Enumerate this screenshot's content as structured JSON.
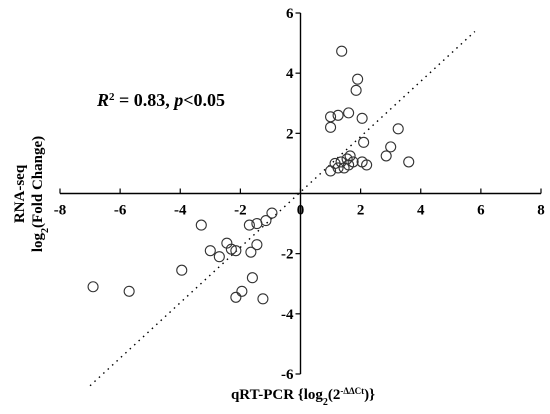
{
  "chart_data": {
    "type": "scatter",
    "xlabel": {
      "pre": "qRT-PCR {log",
      "sub": "2",
      "mid": "(2",
      "sup": "-ΔΔCt",
      "post": ")}"
    },
    "ylabel": {
      "line1": "RNA-seq",
      "pre": "log",
      "sub": "2",
      "post": "(Fold Change)"
    },
    "annotation": {
      "r": "R",
      "r_sup": "2",
      "eq": " = 0.83, ",
      "p": "p",
      "rest": "<0.05"
    },
    "xlim": [
      -8,
      8
    ],
    "ylim": [
      -6,
      6
    ],
    "xticks": [
      -8,
      -6,
      -4,
      -2,
      0,
      2,
      4,
      6,
      8
    ],
    "yticks": [
      -6,
      -4,
      -2,
      0,
      2,
      4,
      6
    ],
    "grid": false,
    "trendline": {
      "style": "dotted",
      "slope": 0.92,
      "intercept": 0.05,
      "x_range": [
        -7,
        5.8
      ]
    },
    "points": [
      [
        1.37,
        4.73
      ],
      [
        1.9,
        3.8
      ],
      [
        1.85,
        3.43
      ],
      [
        1.0,
        2.55
      ],
      [
        1.0,
        2.2
      ],
      [
        1.25,
        2.6
      ],
      [
        1.6,
        2.68
      ],
      [
        2.05,
        2.5
      ],
      [
        3.25,
        2.15
      ],
      [
        2.1,
        1.7
      ],
      [
        3.0,
        1.55
      ],
      [
        1.65,
        1.25
      ],
      [
        1.55,
        1.15
      ],
      [
        1.75,
        1.05
      ],
      [
        1.15,
        1.0
      ],
      [
        1.35,
        1.05
      ],
      [
        2.05,
        1.05
      ],
      [
        2.2,
        0.95
      ],
      [
        2.85,
        1.25
      ],
      [
        3.6,
        1.05
      ],
      [
        1.0,
        0.75
      ],
      [
        1.25,
        0.85
      ],
      [
        1.45,
        0.85
      ],
      [
        1.6,
        0.95
      ],
      [
        -0.95,
        -0.65
      ],
      [
        -1.15,
        -0.9
      ],
      [
        -1.45,
        -1.0
      ],
      [
        -1.7,
        -1.05
      ],
      [
        -3.3,
        -1.05
      ],
      [
        -2.45,
        -1.65
      ],
      [
        -2.3,
        -1.85
      ],
      [
        -2.15,
        -1.9
      ],
      [
        -3.0,
        -1.9
      ],
      [
        -2.7,
        -2.1
      ],
      [
        -1.65,
        -1.95
      ],
      [
        -1.45,
        -1.7
      ],
      [
        -3.95,
        -2.55
      ],
      [
        -1.6,
        -2.8
      ],
      [
        -6.9,
        -3.1
      ],
      [
        -5.7,
        -3.25
      ],
      [
        -1.95,
        -3.25
      ],
      [
        -2.15,
        -3.45
      ],
      [
        -1.25,
        -3.5
      ]
    ]
  }
}
